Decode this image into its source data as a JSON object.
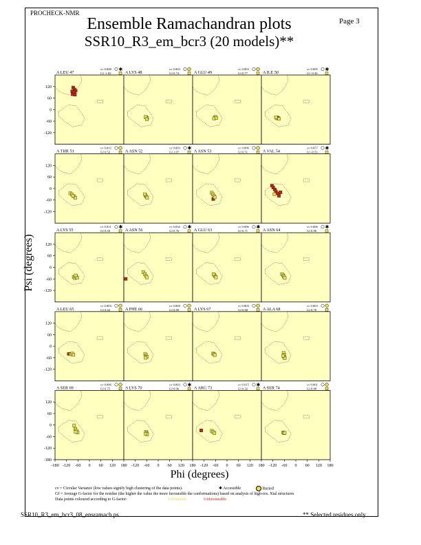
{
  "header": {
    "program": "PROCHECK-NMR",
    "page": "Page  3",
    "title": "Ensemble Ramachandran plots",
    "subtitle": "SSR10_R3_em_bcr3 (20 models)**"
  },
  "footer": {
    "filename": "SSR10_R3_em_bcr3_08_ensramach.ps",
    "note": "** Selected residues only",
    "cv_note": "cv = Circular Variance (low values signify high clustering of the data points).",
    "gf_note": "Gf = Average G-factor for the residue (the higher the value the more favourable the conformations) based on analysis of high-res. Xtal structures",
    "colour_note": "Data points coloured according to G-factor:",
    "legend_accessible": "Accessible",
    "legend_buried": "Buried",
    "legend_favourable": "Favourable",
    "legend_unfavourable": "Unfavourable"
  },
  "colors": {
    "panel_bg": "#ffffc0",
    "favourable": "#e8e040",
    "unfavourable": "#c82010",
    "region_outline": "#555555"
  },
  "chart_data": {
    "type": "scatter",
    "title": "Ensemble Ramachandran plots",
    "xlabel": "Phi (degrees)",
    "ylabel": "Psi (degrees)",
    "xlim": [
      -180,
      180
    ],
    "ylim": [
      -180,
      180
    ],
    "x_ticks": [
      "-180",
      "-120",
      "-60",
      "0",
      "60",
      "120",
      "180"
    ],
    "y_ticks": [
      "120",
      "60",
      "0",
      "-60",
      "-120"
    ],
    "y_ticks_bottom_row": [
      "120",
      "60",
      "0",
      "-60",
      "-120",
      "-180"
    ],
    "panels": [
      {
        "residue": "A LEU 47",
        "cv": "cv 0.008",
        "gf": "Gf -1.82",
        "access": "accessible",
        "points": [
          [
            -85,
            115,
            "u"
          ],
          [
            -78,
            105,
            "u"
          ],
          [
            -90,
            95,
            "u"
          ],
          [
            -80,
            88,
            "u"
          ],
          [
            -72,
            98,
            "u"
          ],
          [
            -88,
            80,
            "u"
          ],
          [
            -76,
            78,
            "u"
          ],
          [
            -82,
            92,
            "u"
          ]
        ]
      },
      {
        "residue": "A LYS 48",
        "cv": "cv 0.003",
        "gf": "Gf 0.74",
        "access": "buried",
        "points": [
          [
            -62,
            -40,
            "f"
          ],
          [
            -58,
            -45,
            "f"
          ],
          [
            -66,
            -38,
            "f"
          ],
          [
            -60,
            -50,
            "f"
          ]
        ]
      },
      {
        "residue": "A GLU 49",
        "cv": "cv 0.003",
        "gf": "Gf 0.77",
        "access": "buried",
        "points": [
          [
            -64,
            -42,
            "f"
          ],
          [
            -60,
            -38,
            "f"
          ],
          [
            -68,
            -46,
            "f"
          ],
          [
            -56,
            -44,
            "f"
          ]
        ]
      },
      {
        "residue": "A ILE 50",
        "cv": "cv 0.005",
        "gf": "Gf -0.36",
        "access": "accessible",
        "points": [
          [
            -100,
            -45,
            "f"
          ],
          [
            -94,
            -42,
            "u"
          ],
          [
            -88,
            -48,
            "f"
          ],
          [
            -104,
            -40,
            "f"
          ]
        ]
      },
      {
        "residue": "A THR 51",
        "cv": "cv 0.012",
        "gf": "Gf 0.52",
        "access": "buried",
        "points": [
          [
            -100,
            -25,
            "f"
          ],
          [
            -92,
            -30,
            "f"
          ],
          [
            -80,
            -42,
            "f"
          ],
          [
            -74,
            -48,
            "f"
          ],
          [
            -86,
            -38,
            "f"
          ]
        ]
      },
      {
        "residue": "A ASN 52",
        "cv": "cv 0.003",
        "gf": "Gf 1.07",
        "access": "accessible",
        "points": [
          [
            -66,
            -36,
            "f"
          ],
          [
            -62,
            -42,
            "f"
          ],
          [
            -58,
            -48,
            "f"
          ],
          [
            -70,
            -30,
            "f"
          ]
        ]
      },
      {
        "residue": "A ASN 53",
        "cv": "cv 0.006",
        "gf": "Gf 0.51",
        "access": "buried",
        "points": [
          [
            -80,
            -22,
            "f"
          ],
          [
            -74,
            -30,
            "f"
          ],
          [
            -68,
            -40,
            "f"
          ],
          [
            -72,
            -55,
            "u"
          ],
          [
            -64,
            -46,
            "f"
          ]
        ]
      },
      {
        "residue": "A VAL 54",
        "cv": "cv 0.057",
        "gf": "Gf -0.53",
        "access": "accessible",
        "points": [
          [
            -125,
            15,
            "u"
          ],
          [
            -118,
            5,
            "u"
          ],
          [
            -110,
            -5,
            "u"
          ],
          [
            -104,
            -15,
            "u"
          ],
          [
            -95,
            -25,
            "u"
          ],
          [
            -88,
            -38,
            "u"
          ],
          [
            -80,
            -20,
            "u"
          ],
          [
            -112,
            -30,
            "f"
          ]
        ]
      },
      {
        "residue": "A LYS 55",
        "cv": "cv 0.011",
        "gf": "Gf 0.50",
        "access": "accessible",
        "points": [
          [
            -82,
            -50,
            "f"
          ],
          [
            -76,
            -56,
            "f"
          ],
          [
            -70,
            -48,
            "f"
          ],
          [
            -64,
            -54,
            "f"
          ],
          [
            -72,
            -42,
            "f"
          ]
        ]
      },
      {
        "residue": "A ASN 56",
        "cv": "cv 0.034",
        "gf": "Gf 0.76",
        "access": "accessible",
        "points": [
          [
            -170,
            -60,
            "u"
          ],
          [
            -78,
            -25,
            "f"
          ],
          [
            -70,
            -35,
            "f"
          ],
          [
            -64,
            -45,
            "f"
          ],
          [
            -60,
            -52,
            "f"
          ]
        ]
      },
      {
        "residue": "A GLU 63",
        "cv": "cv 0.006",
        "gf": "Gf 0.71",
        "access": "accessible",
        "points": [
          [
            -66,
            -40,
            "f"
          ],
          [
            -62,
            -46,
            "f"
          ],
          [
            -58,
            -52,
            "f"
          ],
          [
            -70,
            -36,
            "f"
          ]
        ]
      },
      {
        "residue": "A ASN 64",
        "cv": "cv 0.006",
        "gf": "Gf 0.96",
        "access": "accessible",
        "points": [
          [
            -72,
            -35,
            "f"
          ],
          [
            -66,
            -42,
            "f"
          ],
          [
            -62,
            -48,
            "f"
          ],
          [
            -58,
            -55,
            "f"
          ]
        ]
      },
      {
        "residue": "A LEU 65",
        "cv": "cv 0.003",
        "gf": "Gf 0.64",
        "access": "buried",
        "points": [
          [
            -108,
            -40,
            "u"
          ],
          [
            -98,
            -42,
            "f"
          ],
          [
            -90,
            -38,
            "f"
          ],
          [
            -84,
            -44,
            "f"
          ]
        ]
      },
      {
        "residue": "A PHE 66",
        "cv": "cv 0.004",
        "gf": "Gf 0.89",
        "access": "buried",
        "points": [
          [
            -68,
            -40,
            "f"
          ],
          [
            -64,
            -48,
            "f"
          ],
          [
            -60,
            -55,
            "f"
          ],
          [
            -66,
            -60,
            "f"
          ]
        ]
      },
      {
        "residue": "A LYS 67",
        "cv": "cv 0.003",
        "gf": "Gf 0.68",
        "access": "buried",
        "points": [
          [
            -72,
            -38,
            "f"
          ],
          [
            -68,
            -42,
            "f"
          ],
          [
            -64,
            -46,
            "f"
          ]
        ]
      },
      {
        "residue": "A ALA 68",
        "cv": "cv 0.003",
        "gf": "Gf 0.70",
        "access": "buried",
        "points": [
          [
            -64,
            -35,
            "f"
          ],
          [
            -60,
            -45,
            "f"
          ],
          [
            -62,
            -55,
            "f"
          ],
          [
            -58,
            -62,
            "f"
          ],
          [
            -66,
            -50,
            "f"
          ]
        ]
      },
      {
        "residue": "A SER 69",
        "cv": "cv 0.006",
        "gf": "Gf 0.75",
        "access": "buried",
        "points": [
          [
            -80,
            -2,
            "f"
          ],
          [
            -74,
            -20,
            "f"
          ],
          [
            -68,
            -30,
            "f"
          ],
          [
            -62,
            -38,
            "f"
          ],
          [
            -72,
            -36,
            "f"
          ]
        ]
      },
      {
        "residue": "A LYS 70",
        "cv": "cv 0.003",
        "gf": "Gf 0.96",
        "access": "accessible",
        "points": [
          [
            -64,
            -35,
            "f"
          ],
          [
            -60,
            -42,
            "f"
          ],
          [
            -58,
            -48,
            "f"
          ],
          [
            -66,
            -45,
            "f"
          ]
        ]
      },
      {
        "residue": "A ARG 73",
        "cv": "cv 0.015",
        "gf": "Gf 0.32",
        "access": "accessible",
        "points": [
          [
            -135,
            -28,
            "u"
          ],
          [
            -80,
            -30,
            "f"
          ],
          [
            -72,
            -36,
            "f"
          ],
          [
            -66,
            -42,
            "f"
          ]
        ]
      },
      {
        "residue": "A SER 74",
        "cv": "cv 0.001",
        "gf": "Gf 0.88",
        "access": "buried",
        "points": [
          [
            -66,
            -38,
            "f"
          ],
          [
            -62,
            -42,
            "f"
          ],
          [
            -58,
            -40,
            "f"
          ]
        ]
      }
    ]
  }
}
